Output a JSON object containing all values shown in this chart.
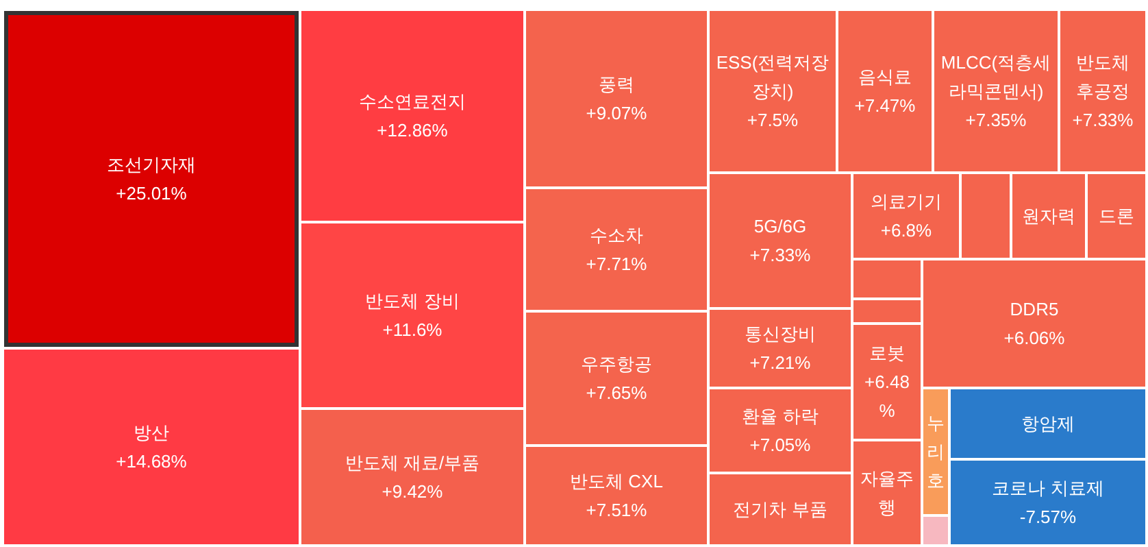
{
  "chart_data": {
    "type": "other",
    "value_labels": [
      "+25.01%",
      "+14.68%",
      "+12.86%",
      "+11.6%",
      "+9.42%",
      "+9.07%",
      "+7.71%",
      "+7.65%",
      "+7.51%",
      "+7.5%",
      "+7.47%",
      "+7.35%",
      "+7.33%",
      "+7.33%",
      "+7.21%",
      "+7.05%",
      null,
      "+6.8%",
      null,
      null,
      null,
      null,
      null,
      "+6.48%",
      null,
      "+6.06%",
      null,
      null,
      null,
      "-7.57%"
    ],
    "categories": [
      "조선기자재",
      "방산",
      "수소연료전지",
      "반도체 장비",
      "반도체 재료/부품",
      "풍력",
      "수소차",
      "우주항공",
      "반도체 CXL",
      "ESS(전력저장 장치)",
      "음식료",
      "MLCC(적층세라믹콘덴서)",
      "반도체 후공정",
      "5G/6G",
      "통신장비",
      "환율 하락",
      "전기차 부품",
      "의료기기",
      null,
      "원자력",
      "드론",
      null,
      null,
      "로봇",
      "자율주행",
      "DDR5",
      "누리호",
      null,
      "항암제",
      "코로나 치료제"
    ],
    "values": [
      25.01,
      14.68,
      12.86,
      11.6,
      9.42,
      9.07,
      7.71,
      7.65,
      7.51,
      7.5,
      7.47,
      7.35,
      7.33,
      7.33,
      7.21,
      7.05,
      null,
      6.8,
      null,
      null,
      null,
      null,
      null,
      6.48,
      null,
      6.06,
      null,
      null,
      null,
      -7.57
    ],
    "colors": [
      "#dc0000",
      "#ff3a44",
      "#ff3d42",
      "#ff4545",
      "#f4604d",
      "#f4634d",
      "#f4644d",
      "#f4644d",
      "#f4644d",
      "#f4644d",
      "#f4644d",
      "#f4644d",
      "#f4644d",
      "#f4644d",
      "#f4644d",
      "#f4644d",
      "#f4644d",
      "#f4644d",
      "#f4644d",
      "#f4644d",
      "#f4644d",
      "#f4644d",
      "#f4644d",
      "#f4644d",
      "#f4644d",
      "#f4644d",
      "#f99c5a",
      "#f7b8c0",
      "#2a7bcb",
      "#2a7bcb"
    ]
  }
}
